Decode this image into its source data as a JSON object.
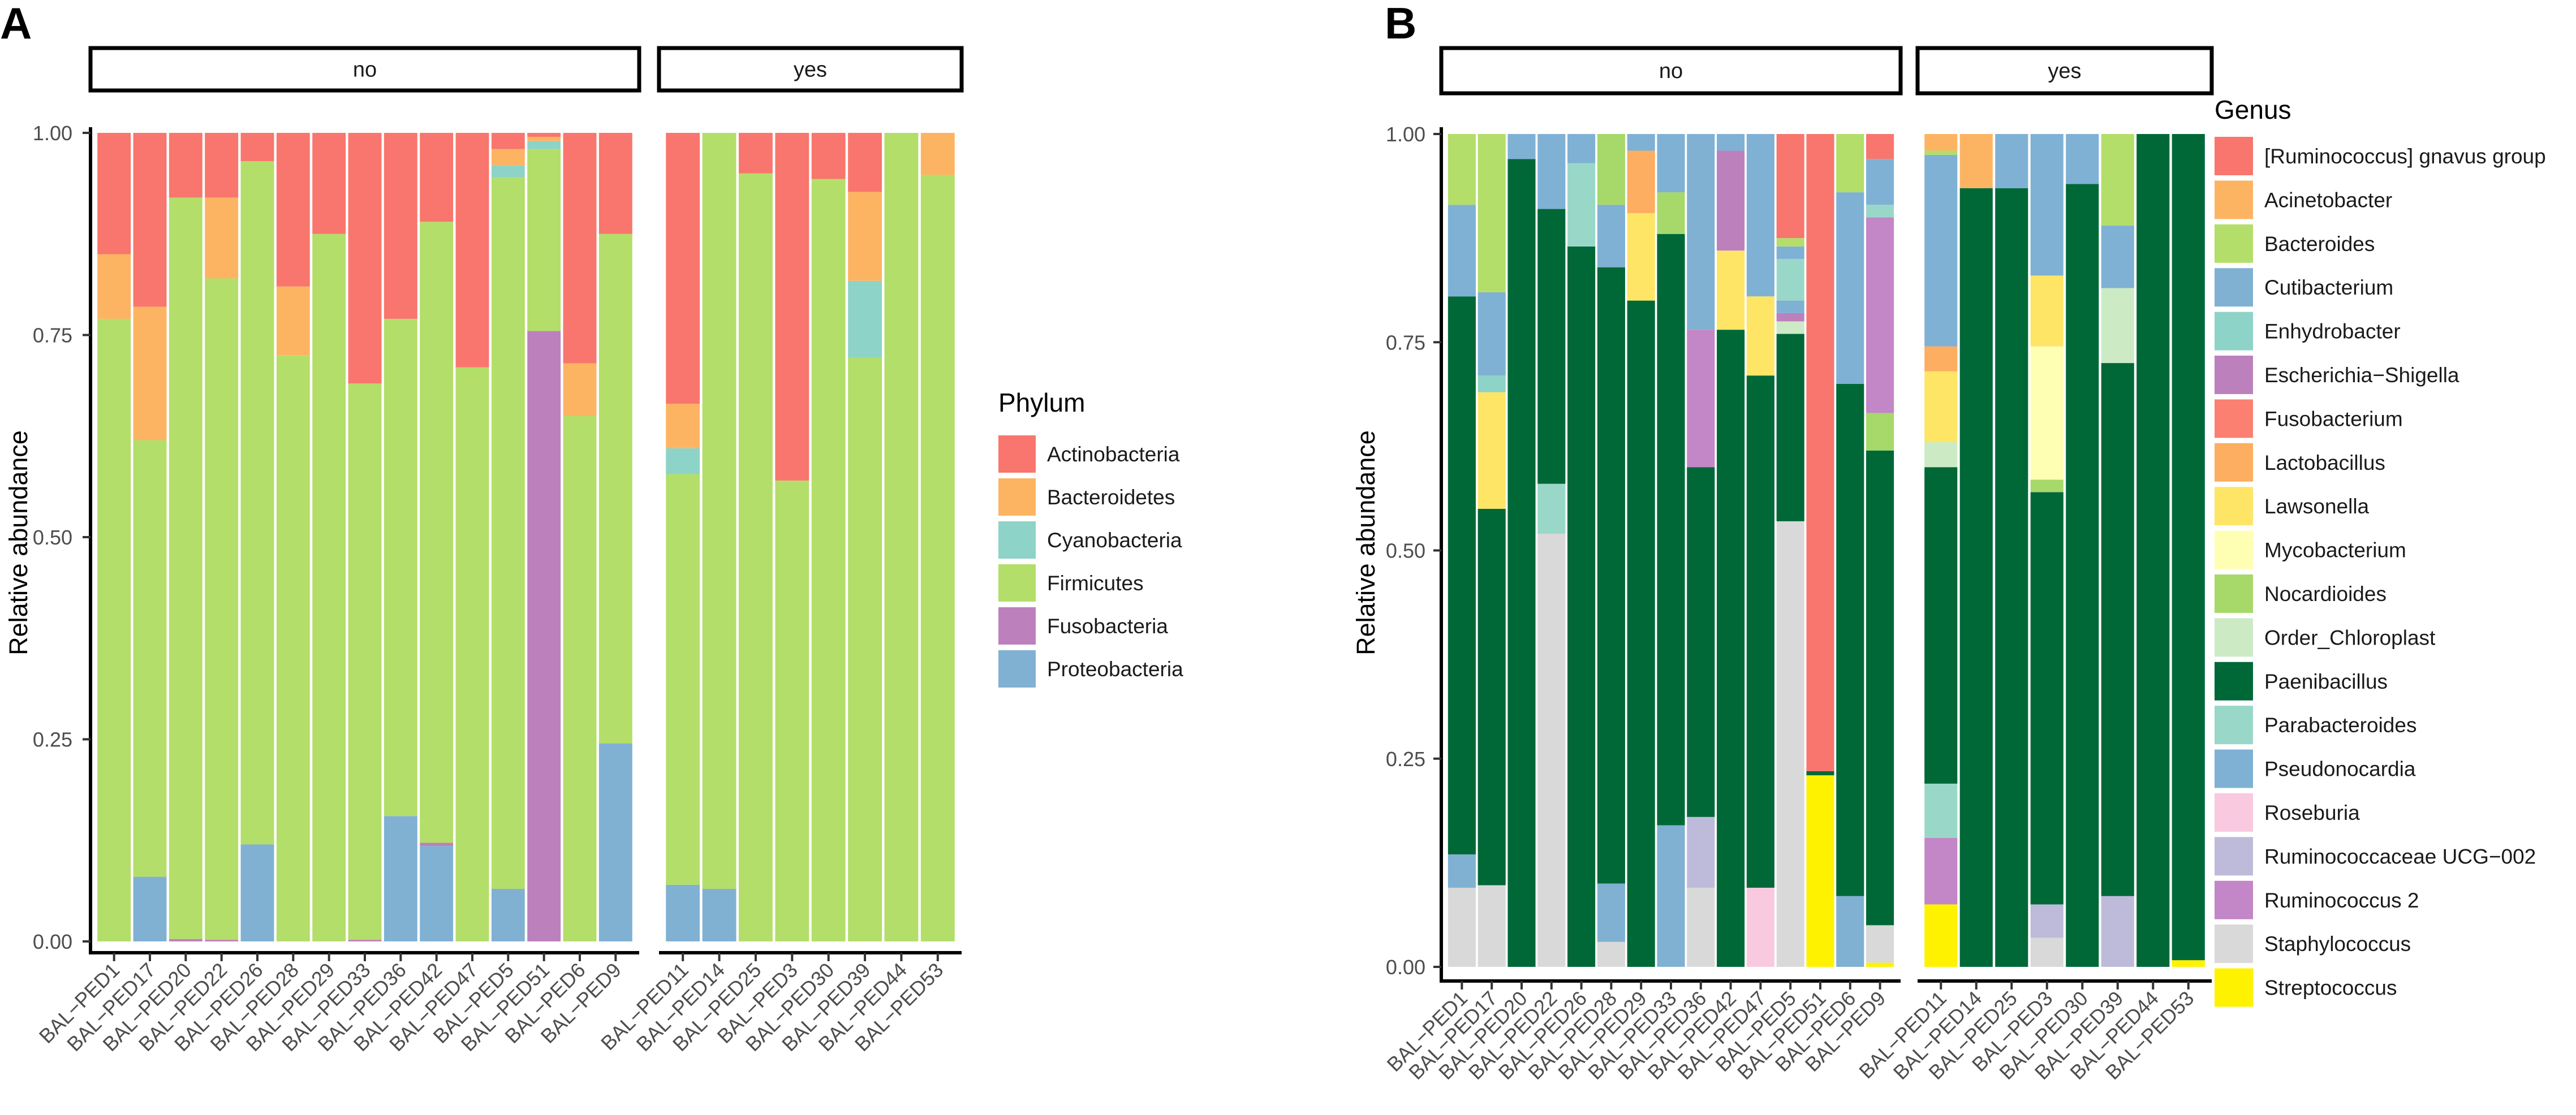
{
  "chart_data": [
    {
      "panel": "A",
      "type": "bar",
      "stacked": true,
      "ylabel": "Relative abundance",
      "xlabel": "",
      "ylim": [
        0,
        1
      ],
      "yticks": [
        "0.00",
        "0.25",
        "0.50",
        "0.75",
        "1.00"
      ],
      "legend_title": "Phylum",
      "legend_position": "right",
      "colors": {
        "Actinobacteria": "#F8766D",
        "Bacteroidetes": "#FDB462",
        "Cyanobacteria": "#8DD3C7",
        "Firmicutes": "#B3DE69",
        "Fusobacteria": "#BC80BD",
        "Proteobacteria": "#80B1D3"
      },
      "legend": [
        "Actinobacteria",
        "Bacteroidetes",
        "Cyanobacteria",
        "Firmicutes",
        "Fusobacteria",
        "Proteobacteria"
      ],
      "facets": [
        {
          "label": "no",
          "samples": [
            {
              "name": "BAL−PED1",
              "values": {
                "Firmicutes": 0.77,
                "Bacteroidetes": 0.08,
                "Actinobacteria": 0.15
              }
            },
            {
              "name": "BAL−PED17",
              "values": {
                "Proteobacteria": 0.08,
                "Firmicutes": 0.54,
                "Bacteroidetes": 0.165,
                "Actinobacteria": 0.215
              }
            },
            {
              "name": "BAL−PED20",
              "values": {
                "Fusobacteria": 0.003,
                "Firmicutes": 0.917,
                "Actinobacteria": 0.08
              }
            },
            {
              "name": "BAL−PED22",
              "values": {
                "Fusobacteria": 0.002,
                "Firmicutes": 0.818,
                "Bacteroidetes": 0.1,
                "Actinobacteria": 0.08
              }
            },
            {
              "name": "BAL−PED26",
              "values": {
                "Proteobacteria": 0.12,
                "Firmicutes": 0.845,
                "Actinobacteria": 0.035
              }
            },
            {
              "name": "BAL−PED28",
              "values": {
                "Firmicutes": 0.725,
                "Bacteroidetes": 0.085,
                "Actinobacteria": 0.19
              }
            },
            {
              "name": "BAL−PED29",
              "values": {
                "Firmicutes": 0.875,
                "Actinobacteria": 0.125
              }
            },
            {
              "name": "BAL−PED33",
              "values": {
                "Fusobacteria": 0.002,
                "Firmicutes": 0.688,
                "Actinobacteria": 0.31
              }
            },
            {
              "name": "BAL−PED36",
              "values": {
                "Proteobacteria": 0.155,
                "Firmicutes": 0.615,
                "Actinobacteria": 0.23
              }
            },
            {
              "name": "BAL−PED42",
              "values": {
                "Proteobacteria": 0.118,
                "Fusobacteria": 0.004,
                "Firmicutes": 0.768,
                "Actinobacteria": 0.11
              }
            },
            {
              "name": "BAL−PED47",
              "values": {
                "Firmicutes": 0.71,
                "Actinobacteria": 0.29
              }
            },
            {
              "name": "BAL−PED5",
              "values": {
                "Proteobacteria": 0.065,
                "Firmicutes": 0.88,
                "Cyanobacteria": 0.015,
                "Bacteroidetes": 0.02,
                "Actinobacteria": 0.02
              }
            },
            {
              "name": "BAL−PED51",
              "values": {
                "Fusobacteria": 0.755,
                "Firmicutes": 0.225,
                "Cyanobacteria": 0.01,
                "Bacteroidetes": 0.005,
                "Actinobacteria": 0.005
              }
            },
            {
              "name": "BAL−PED6",
              "values": {
                "Firmicutes": 0.65,
                "Bacteroidetes": 0.065,
                "Actinobacteria": 0.285
              }
            },
            {
              "name": "BAL−PED9",
              "values": {
                "Proteobacteria": 0.245,
                "Firmicutes": 0.63,
                "Actinobacteria": 0.125
              }
            }
          ]
        },
        {
          "label": "yes",
          "samples": [
            {
              "name": "BAL−PED11",
              "values": {
                "Proteobacteria": 0.07,
                "Firmicutes": 0.508,
                "Cyanobacteria": 0.032,
                "Bacteroidetes": 0.055,
                "Actinobacteria": 0.335
              }
            },
            {
              "name": "BAL−PED14",
              "values": {
                "Proteobacteria": 0.065,
                "Firmicutes": 0.935
              }
            },
            {
              "name": "BAL−PED25",
              "values": {
                "Firmicutes": 0.95,
                "Actinobacteria": 0.05
              }
            },
            {
              "name": "BAL−PED3",
              "values": {
                "Firmicutes": 0.57,
                "Actinobacteria": 0.43
              }
            },
            {
              "name": "BAL−PED30",
              "values": {
                "Firmicutes": 0.943,
                "Actinobacteria": 0.057
              }
            },
            {
              "name": "BAL−PED39",
              "values": {
                "Firmicutes": 0.722,
                "Cyanobacteria": 0.095,
                "Bacteroidetes": 0.11,
                "Actinobacteria": 0.073
              }
            },
            {
              "name": "BAL−PED44",
              "values": {
                "Firmicutes": 1.0
              }
            },
            {
              "name": "BAL−PED53",
              "values": {
                "Firmicutes": 0.948,
                "Bacteroidetes": 0.052
              }
            }
          ]
        }
      ]
    },
    {
      "panel": "B",
      "type": "bar",
      "stacked": true,
      "ylabel": "Relative abundance",
      "xlabel": "",
      "ylim": [
        0,
        1
      ],
      "yticks": [
        "0.00",
        "0.25",
        "0.50",
        "0.75",
        "1.00"
      ],
      "legend_title": "Genus",
      "legend_position": "right",
      "colors": {
        "[Ruminococcus] gnavus group": "#F8766D",
        "Acinetobacter": "#FDB462",
        "Bacteroides": "#B3DE69",
        "Cutibacterium": "#80B1D3",
        "Enhydrobacter": "#8DD3C7",
        "Escherichia−Shigella": "#BC80BD",
        "Fusobacterium": "#FB8072",
        "Lactobacillus": "#FDAE61",
        "Lawsonella": "#FEE566",
        "Mycobacterium": "#FFFFB3",
        "Nocardioides": "#A6D96A",
        "Order_Chloroplast": "#CCEBC5",
        "Paenibacillus": "#006837",
        "Parabacteroides": "#99D8C9",
        "Pseudonocardia": "#7FB1D5",
        "Roseburia": "#F9C9E0",
        "Ruminococcaceae UCG−002": "#BEBADA",
        "Ruminococcus 2": "#C386C6",
        "Staphylococcus": "#D9D9D9",
        "Streptococcus": "#FFF200"
      },
      "legend": [
        "[Ruminococcus] gnavus group",
        "Acinetobacter",
        "Bacteroides",
        "Cutibacterium",
        "Enhydrobacter",
        "Escherichia−Shigella",
        "Fusobacterium",
        "Lactobacillus",
        "Lawsonella",
        "Mycobacterium",
        "Nocardioides",
        "Order_Chloroplast",
        "Paenibacillus",
        "Parabacteroides",
        "Pseudonocardia",
        "Roseburia",
        "Ruminococcaceae UCG−002",
        "Ruminococcus 2",
        "Staphylococcus",
        "Streptococcus"
      ],
      "facets": [
        {
          "label": "no",
          "samples": [
            {
              "name": "BAL−PED1",
              "values": {
                "Staphylococcus": 0.095,
                "Cutibacterium": 0.04,
                "Paenibacillus": 0.67,
                "Pseudonocardia": 0.11,
                "Bacteroides": 0.085
              }
            },
            {
              "name": "BAL−PED17",
              "values": {
                "Staphylococcus": 0.098,
                "Paenibacillus": 0.452,
                "Lawsonella": 0.14,
                "Enhydrobacter": 0.02,
                "Pseudonocardia": 0.1,
                "Bacteroides": 0.19
              }
            },
            {
              "name": "BAL−PED20",
              "values": {
                "Paenibacillus": 0.97,
                "Pseudonocardia": 0.03
              }
            },
            {
              "name": "BAL−PED22",
              "values": {
                "Staphylococcus": 0.52,
                "Parabacteroides": 0.06,
                "Paenibacillus": 0.33,
                "Pseudonocardia": 0.09
              }
            },
            {
              "name": "BAL−PED26",
              "values": {
                "Paenibacillus": 0.865,
                "Parabacteroides": 0.1,
                "Pseudonocardia": 0.035
              }
            },
            {
              "name": "BAL−PED28",
              "values": {
                "Staphylococcus": 0.03,
                "Cutibacterium": 0.07,
                "Paenibacillus": 0.74,
                "Pseudonocardia": 0.075,
                "Nocardioides": 0.085
              }
            },
            {
              "name": "BAL−PED29",
              "values": {
                "Paenibacillus": 0.8,
                "Lawsonella": 0.105,
                "Lactobacillus": 0.075,
                "Pseudonocardia": 0.02
              }
            },
            {
              "name": "BAL−PED33",
              "values": {
                "Cutibacterium": 0.17,
                "Paenibacillus": 0.71,
                "Nocardioides": 0.05,
                "Pseudonocardia": 0.07
              }
            },
            {
              "name": "BAL−PED36",
              "values": {
                "Staphylococcus": 0.095,
                "Ruminococcaceae UCG−002": 0.085,
                "Paenibacillus": 0.42,
                "Ruminococcus 2": 0.165,
                "Cutibacterium": 0.235
              }
            },
            {
              "name": "BAL−PED42",
              "values": {
                "Paenibacillus": 0.765,
                "Lawsonella": 0.095,
                "Escherichia−Shigella": 0.12,
                "Pseudonocardia": 0.02
              }
            },
            {
              "name": "BAL−PED47",
              "values": {
                "Roseburia": 0.095,
                "Paenibacillus": 0.615,
                "Lawsonella": 0.095,
                "Pseudonocardia": 0.195
              }
            },
            {
              "name": "BAL−PED5",
              "values": {
                "Staphylococcus": 0.535,
                "Paenibacillus": 0.225,
                "Order_Chloroplast": 0.015,
                "Escherichia−Shigella": 0.01,
                "Pseudonocardia": 0.015,
                "Parabacteroides": 0.05,
                "Pseudonocardia ": 0.015,
                "Bacteroides": 0.01,
                "[Ruminococcus] gnavus group": 0.125
              }
            },
            {
              "name": "BAL−PED51",
              "values": {
                "Streptococcus": 0.23,
                "Paenibacillus": 0.005,
                "[Ruminococcus] gnavus group": 0.765
              }
            },
            {
              "name": "BAL−PED6",
              "values": {
                "Cutibacterium": 0.085,
                "Paenibacillus": 0.615,
                "Pseudonocardia": 0.23,
                "Bacteroides": 0.07
              }
            },
            {
              "name": "BAL−PED9",
              "values": {
                "Streptococcus": 0.005,
                "Staphylococcus": 0.045,
                "Paenibacillus": 0.57,
                "Nocardioides": 0.045,
                "Ruminococcus 2": 0.235,
                "Parabacteroides": 0.015,
                "Pseudonocardia": 0.055,
                "[Ruminococcus] gnavus group": 0.03
              }
            }
          ]
        },
        {
          "label": "yes",
          "samples": [
            {
              "name": "BAL−PED11",
              "values": {
                "Streptococcus": 0.075,
                "Ruminococcus 2": 0.08,
                "Parabacteroides": 0.065,
                "Paenibacillus": 0.38,
                "Order_Chloroplast": 0.03,
                "Lawsonella": 0.085,
                "Lactobacillus": 0.03,
                "Pseudonocardia": 0.23,
                "Bacteroides": 0.005,
                "Acinetobacter": 0.02
              }
            },
            {
              "name": "BAL−PED14",
              "values": {
                "Paenibacillus": 0.935,
                "Acinetobacter": 0.065
              }
            },
            {
              "name": "BAL−PED25",
              "values": {
                "Paenibacillus": 0.935,
                "Pseudonocardia": 0.065
              }
            },
            {
              "name": "BAL−PED3",
              "values": {
                "Staphylococcus": 0.035,
                "Ruminococcaceae UCG−002": 0.04,
                "Paenibacillus": 0.495,
                "Nocardioides": 0.015,
                "Mycobacterium": 0.16,
                "Lawsonella": 0.085,
                "Pseudonocardia": 0.17
              }
            },
            {
              "name": "BAL−PED30",
              "values": {
                "Paenibacillus": 0.94,
                "Pseudonocardia": 0.06
              }
            },
            {
              "name": "BAL−PED39",
              "values": {
                "Ruminococcaceae UCG−002": 0.085,
                "Paenibacillus": 0.64,
                "Order_Chloroplast": 0.09,
                "Pseudonocardia": 0.075,
                "Bacteroides": 0.11
              }
            },
            {
              "name": "BAL−PED44",
              "values": {
                "Paenibacillus": 1.0
              }
            },
            {
              "name": "BAL−PED53",
              "values": {
                "Streptococcus": 0.008,
                "Paenibacillus": 0.992
              }
            }
          ]
        }
      ]
    }
  ]
}
